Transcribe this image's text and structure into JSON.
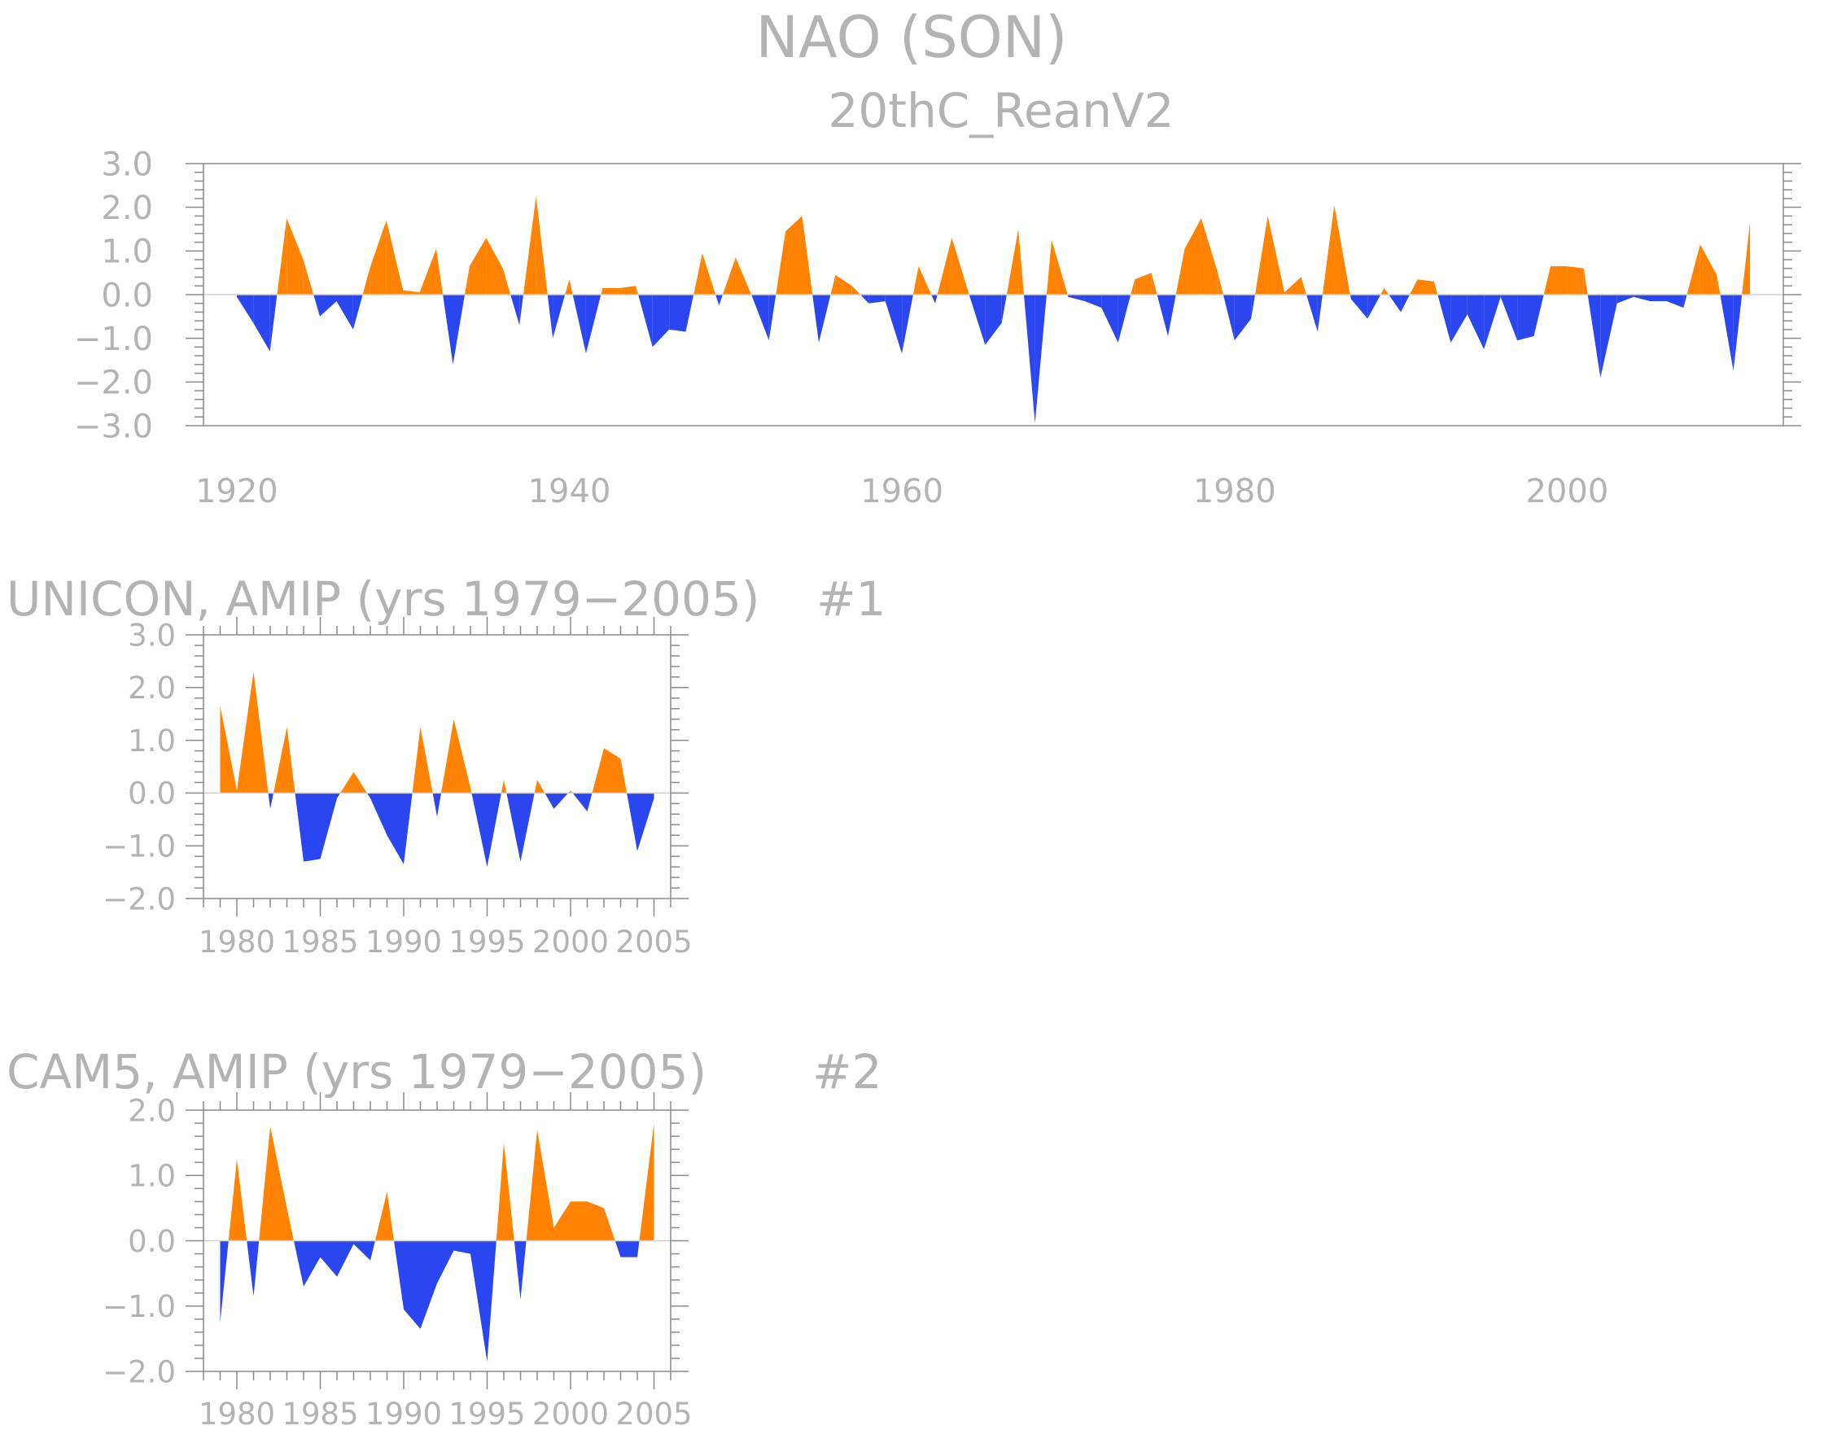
{
  "page": {
    "title": "NAO (SON)",
    "colors": {
      "positive": "#ff8200",
      "negative": "#2a46f0",
      "frame": "#8a8a8a",
      "text": "#b3b3b3"
    }
  },
  "chart_data": [
    {
      "type": "area",
      "subtitle": "20thC_ReanV2",
      "xlim": [
        1920,
        2011
      ],
      "ylim": [
        -3,
        3
      ],
      "x_ticks": [
        1920,
        1940,
        1960,
        1980,
        2000
      ],
      "y_ticks": [
        "3.0",
        "2.0",
        "1.0",
        "0.0",
        "−1.0",
        "−2.0",
        "−3.0"
      ],
      "x": [
        1920,
        1921,
        1922,
        1923,
        1924,
        1925,
        1926,
        1927,
        1928,
        1929,
        1930,
        1931,
        1932,
        1933,
        1934,
        1935,
        1936,
        1937,
        1938,
        1939,
        1940,
        1941,
        1942,
        1943,
        1944,
        1945,
        1946,
        1947,
        1948,
        1949,
        1950,
        1951,
        1952,
        1953,
        1954,
        1955,
        1956,
        1957,
        1958,
        1959,
        1960,
        1961,
        1962,
        1963,
        1964,
        1965,
        1966,
        1967,
        1968,
        1969,
        1970,
        1971,
        1972,
        1973,
        1974,
        1975,
        1976,
        1977,
        1978,
        1979,
        1980,
        1981,
        1982,
        1983,
        1984,
        1985,
        1986,
        1987,
        1988,
        1989,
        1990,
        1991,
        1992,
        1993,
        1994,
        1995,
        1996,
        1997,
        1998,
        1999,
        2000,
        2001,
        2002,
        2003,
        2004,
        2005,
        2006,
        2007,
        2008,
        2009,
        2010,
        2011
      ],
      "values": [
        -0.05,
        -0.65,
        -1.3,
        1.75,
        0.8,
        -0.5,
        -0.15,
        -0.8,
        0.6,
        1.7,
        0.1,
        0.05,
        1.05,
        -1.6,
        0.65,
        1.3,
        0.6,
        -0.7,
        2.25,
        -1.0,
        0.35,
        -1.35,
        0.15,
        0.15,
        0.2,
        -1.2,
        -0.8,
        -0.85,
        0.95,
        -0.25,
        0.85,
        -0.05,
        -1.05,
        1.45,
        1.8,
        -1.1,
        0.45,
        0.2,
        -0.2,
        -0.15,
        -1.35,
        0.65,
        -0.2,
        1.3,
        0.05,
        -1.15,
        -0.65,
        1.5,
        -2.95,
        1.25,
        -0.05,
        -0.15,
        -0.3,
        -1.1,
        0.35,
        0.5,
        -0.95,
        1.05,
        1.75,
        0.5,
        -1.05,
        -0.55,
        1.8,
        0.05,
        0.4,
        -0.85,
        2.05,
        -0.1,
        -0.55,
        0.15,
        -0.4,
        0.35,
        0.3,
        -1.1,
        -0.45,
        -1.25,
        -0.05,
        -1.05,
        -0.95,
        0.65,
        0.65,
        0.6,
        -1.9,
        -0.2,
        -0.05,
        -0.15,
        -0.15,
        -0.3,
        1.15,
        0.45,
        -1.75,
        1.65
      ]
    },
    {
      "type": "area",
      "title": "UNICON, AMIP (yrs 1979−2005)",
      "tag": "#1",
      "xlim": [
        1979,
        2005
      ],
      "ylim": [
        -2,
        3
      ],
      "x_ticks": [
        1980,
        1985,
        1990,
        1995,
        2000,
        2005
      ],
      "y_ticks": [
        "3.0",
        "2.0",
        "1.0",
        "0.0",
        "−1.0",
        "−2.0"
      ],
      "x": [
        1979,
        1980,
        1981,
        1982,
        1983,
        1984,
        1985,
        1986,
        1987,
        1988,
        1989,
        1990,
        1991,
        1992,
        1993,
        1994,
        1995,
        1996,
        1997,
        1998,
        1999,
        2000,
        2001,
        2002,
        2003,
        2004,
        2005
      ],
      "values": [
        1.65,
        0.05,
        2.3,
        -0.3,
        1.25,
        -1.3,
        -1.25,
        -0.1,
        0.4,
        -0.1,
        -0.8,
        -1.35,
        1.25,
        -0.45,
        1.4,
        0.1,
        -1.4,
        0.25,
        -1.3,
        0.25,
        -0.3,
        0.05,
        -0.35,
        0.85,
        0.65,
        -1.1,
        -0.1
      ]
    },
    {
      "type": "area",
      "title": "CAM5, AMIP (yrs 1979−2005)",
      "tag": "#2",
      "xlim": [
        1979,
        2005
      ],
      "ylim": [
        -2,
        2
      ],
      "x_ticks": [
        1980,
        1985,
        1990,
        1995,
        2000,
        2005
      ],
      "y_ticks": [
        "2.0",
        "1.0",
        "0.0",
        "−1.0",
        "−2.0"
      ],
      "x": [
        1979,
        1980,
        1981,
        1982,
        1983,
        1984,
        1985,
        1986,
        1987,
        1988,
        1989,
        1990,
        1991,
        1992,
        1993,
        1994,
        1995,
        1996,
        1997,
        1998,
        1999,
        2000,
        2001,
        2002,
        2003,
        2004,
        2005
      ],
      "values": [
        -1.25,
        1.25,
        -0.85,
        1.75,
        0.5,
        -0.7,
        -0.25,
        -0.55,
        -0.05,
        -0.3,
        0.75,
        -1.05,
        -1.35,
        -0.65,
        -0.15,
        -0.2,
        -1.85,
        1.5,
        -0.9,
        1.7,
        0.2,
        0.6,
        0.6,
        0.5,
        -0.25,
        -0.25,
        1.8
      ]
    }
  ]
}
